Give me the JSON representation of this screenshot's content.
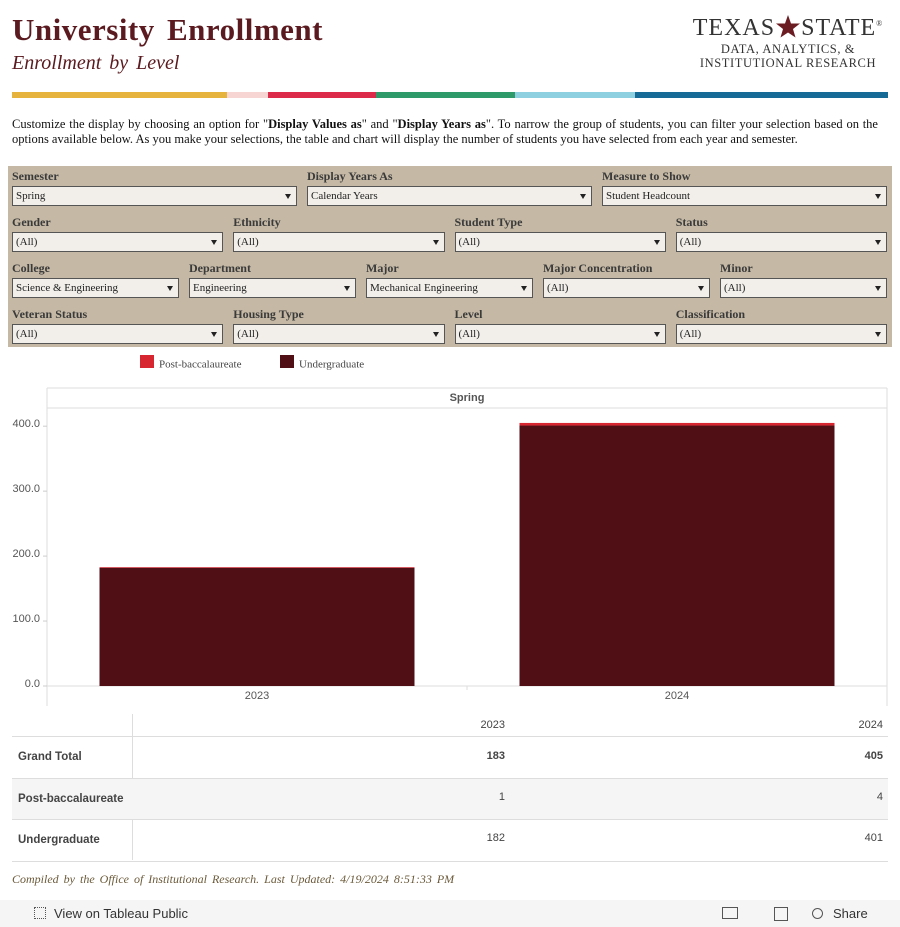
{
  "header": {
    "title": "University Enrollment",
    "subtitle": "Enrollment by Level",
    "logo": {
      "word1": "TEXAS",
      "word2": "STATE",
      "registered": "®",
      "line2": "DATA, ANALYTICS, &",
      "line3": "INSTITUTIONAL RESEARCH"
    }
  },
  "intro": [
    {
      "text": "Customize the display by choosing an option for \""
    },
    {
      "text": "Display Values as",
      "bold": true
    },
    {
      "text": "\" and \""
    },
    {
      "text": "Display Years as",
      "bold": true
    },
    {
      "text": "\". To narrow the group of students, you can filter your selection based on the options available below. As you make your selections, the table and chart will display the number of students you have selected from each year and semester."
    }
  ],
  "filters": [
    [
      {
        "label": "Semester",
        "value": "Spring"
      },
      {
        "label": "Display Years As",
        "value": "Calendar Years"
      },
      {
        "label": "Measure to Show",
        "value": "Student Headcount"
      }
    ],
    [
      {
        "label": "Gender",
        "value": "(All)"
      },
      {
        "label": "Ethnicity",
        "value": "(All)"
      },
      {
        "label": "Student Type",
        "value": "(All)"
      },
      {
        "label": "Status",
        "value": "(All)"
      }
    ],
    [
      {
        "label": "College",
        "value": "Science & Engineering"
      },
      {
        "label": "Department",
        "value": "Engineering"
      },
      {
        "label": "Major",
        "value": "Mechanical Engineering"
      },
      {
        "label": "Major Concentration",
        "value": "(All)"
      },
      {
        "label": "Minor",
        "value": "(All)"
      }
    ],
    [
      {
        "label": "Veteran Status",
        "value": "(All)"
      },
      {
        "label": "Housing Type",
        "value": "(All)"
      },
      {
        "label": "Level",
        "value": "(All)"
      },
      {
        "label": "Classification",
        "value": "(All)"
      }
    ]
  ],
  "chart_data": {
    "type": "bar",
    "stacked": true,
    "panel_title": "Spring",
    "categories": [
      "2023",
      "2024"
    ],
    "series": [
      {
        "name": "Post-baccalaureate",
        "color": "#d7262f",
        "values": [
          1,
          4
        ]
      },
      {
        "name": "Undergraduate",
        "color": "#4f0f15",
        "values": [
          182,
          401
        ]
      }
    ],
    "ylim": [
      0,
      428
    ],
    "yticks": [
      {
        "value": 0,
        "label": "0.0"
      },
      {
        "value": 100,
        "label": "100.0"
      },
      {
        "value": 200,
        "label": "200.0"
      },
      {
        "value": 300,
        "label": "300.0"
      },
      {
        "value": 400,
        "label": "400.0"
      }
    ]
  },
  "table": {
    "columns": [
      "2023",
      "2024"
    ],
    "rows": [
      {
        "label": "Grand Total",
        "values": [
          183,
          405
        ],
        "bold": true
      },
      {
        "label": "Post-baccalaureate",
        "values": [
          1,
          4
        ]
      },
      {
        "label": "Undergraduate",
        "values": [
          182,
          401
        ]
      }
    ]
  },
  "footer": "Compiled by the Office of Institutional Research. Last Updated: 4/19/2024 8:51:33 PM",
  "toolbar": {
    "view": "View on Tableau Public",
    "share": "Share"
  }
}
